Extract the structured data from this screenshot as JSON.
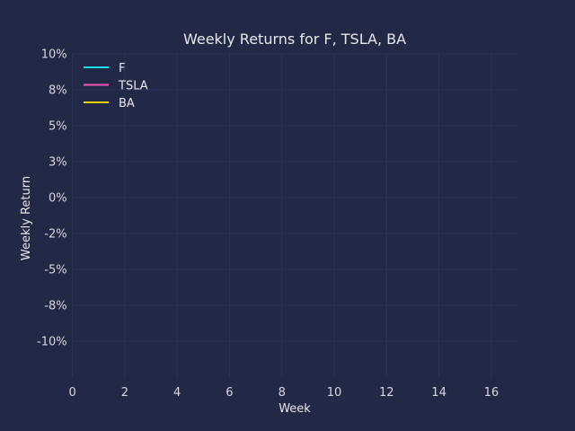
{
  "colors": {
    "background": "#212946",
    "grid": "#2A3459",
    "text": "#E8E8EA",
    "tick_text": "#D8D8DE"
  },
  "chart_data": {
    "type": "line",
    "title": "Weekly Returns for F, TSLA, BA",
    "xlabel": "Week",
    "ylabel": "Weekly Return",
    "xlim": [
      0,
      17
    ],
    "ylim": [
      -0.125,
      0.1
    ],
    "x_ticks": [
      0,
      2,
      4,
      6,
      8,
      10,
      12,
      14,
      16
    ],
    "x_tick_labels": [
      "0",
      "2",
      "4",
      "6",
      "8",
      "10",
      "12",
      "14",
      "16"
    ],
    "y_ticks": [
      0.1,
      0.075,
      0.05,
      0.025,
      0.0,
      -0.025,
      -0.05,
      -0.075,
      -0.1
    ],
    "y_tick_labels": [
      "10%",
      "8%",
      "5%",
      "3%",
      "0%",
      "-2%",
      "-5%",
      "-8%",
      "-10%"
    ],
    "grid": true,
    "legend_position": "top-left",
    "series": [
      {
        "name": "F",
        "color": "#18E0F2",
        "x": [],
        "y": []
      },
      {
        "name": "TSLA",
        "color": "#FE53BB",
        "x": [],
        "y": []
      },
      {
        "name": "BA",
        "color": "#F5D300",
        "x": [],
        "y": []
      }
    ]
  }
}
